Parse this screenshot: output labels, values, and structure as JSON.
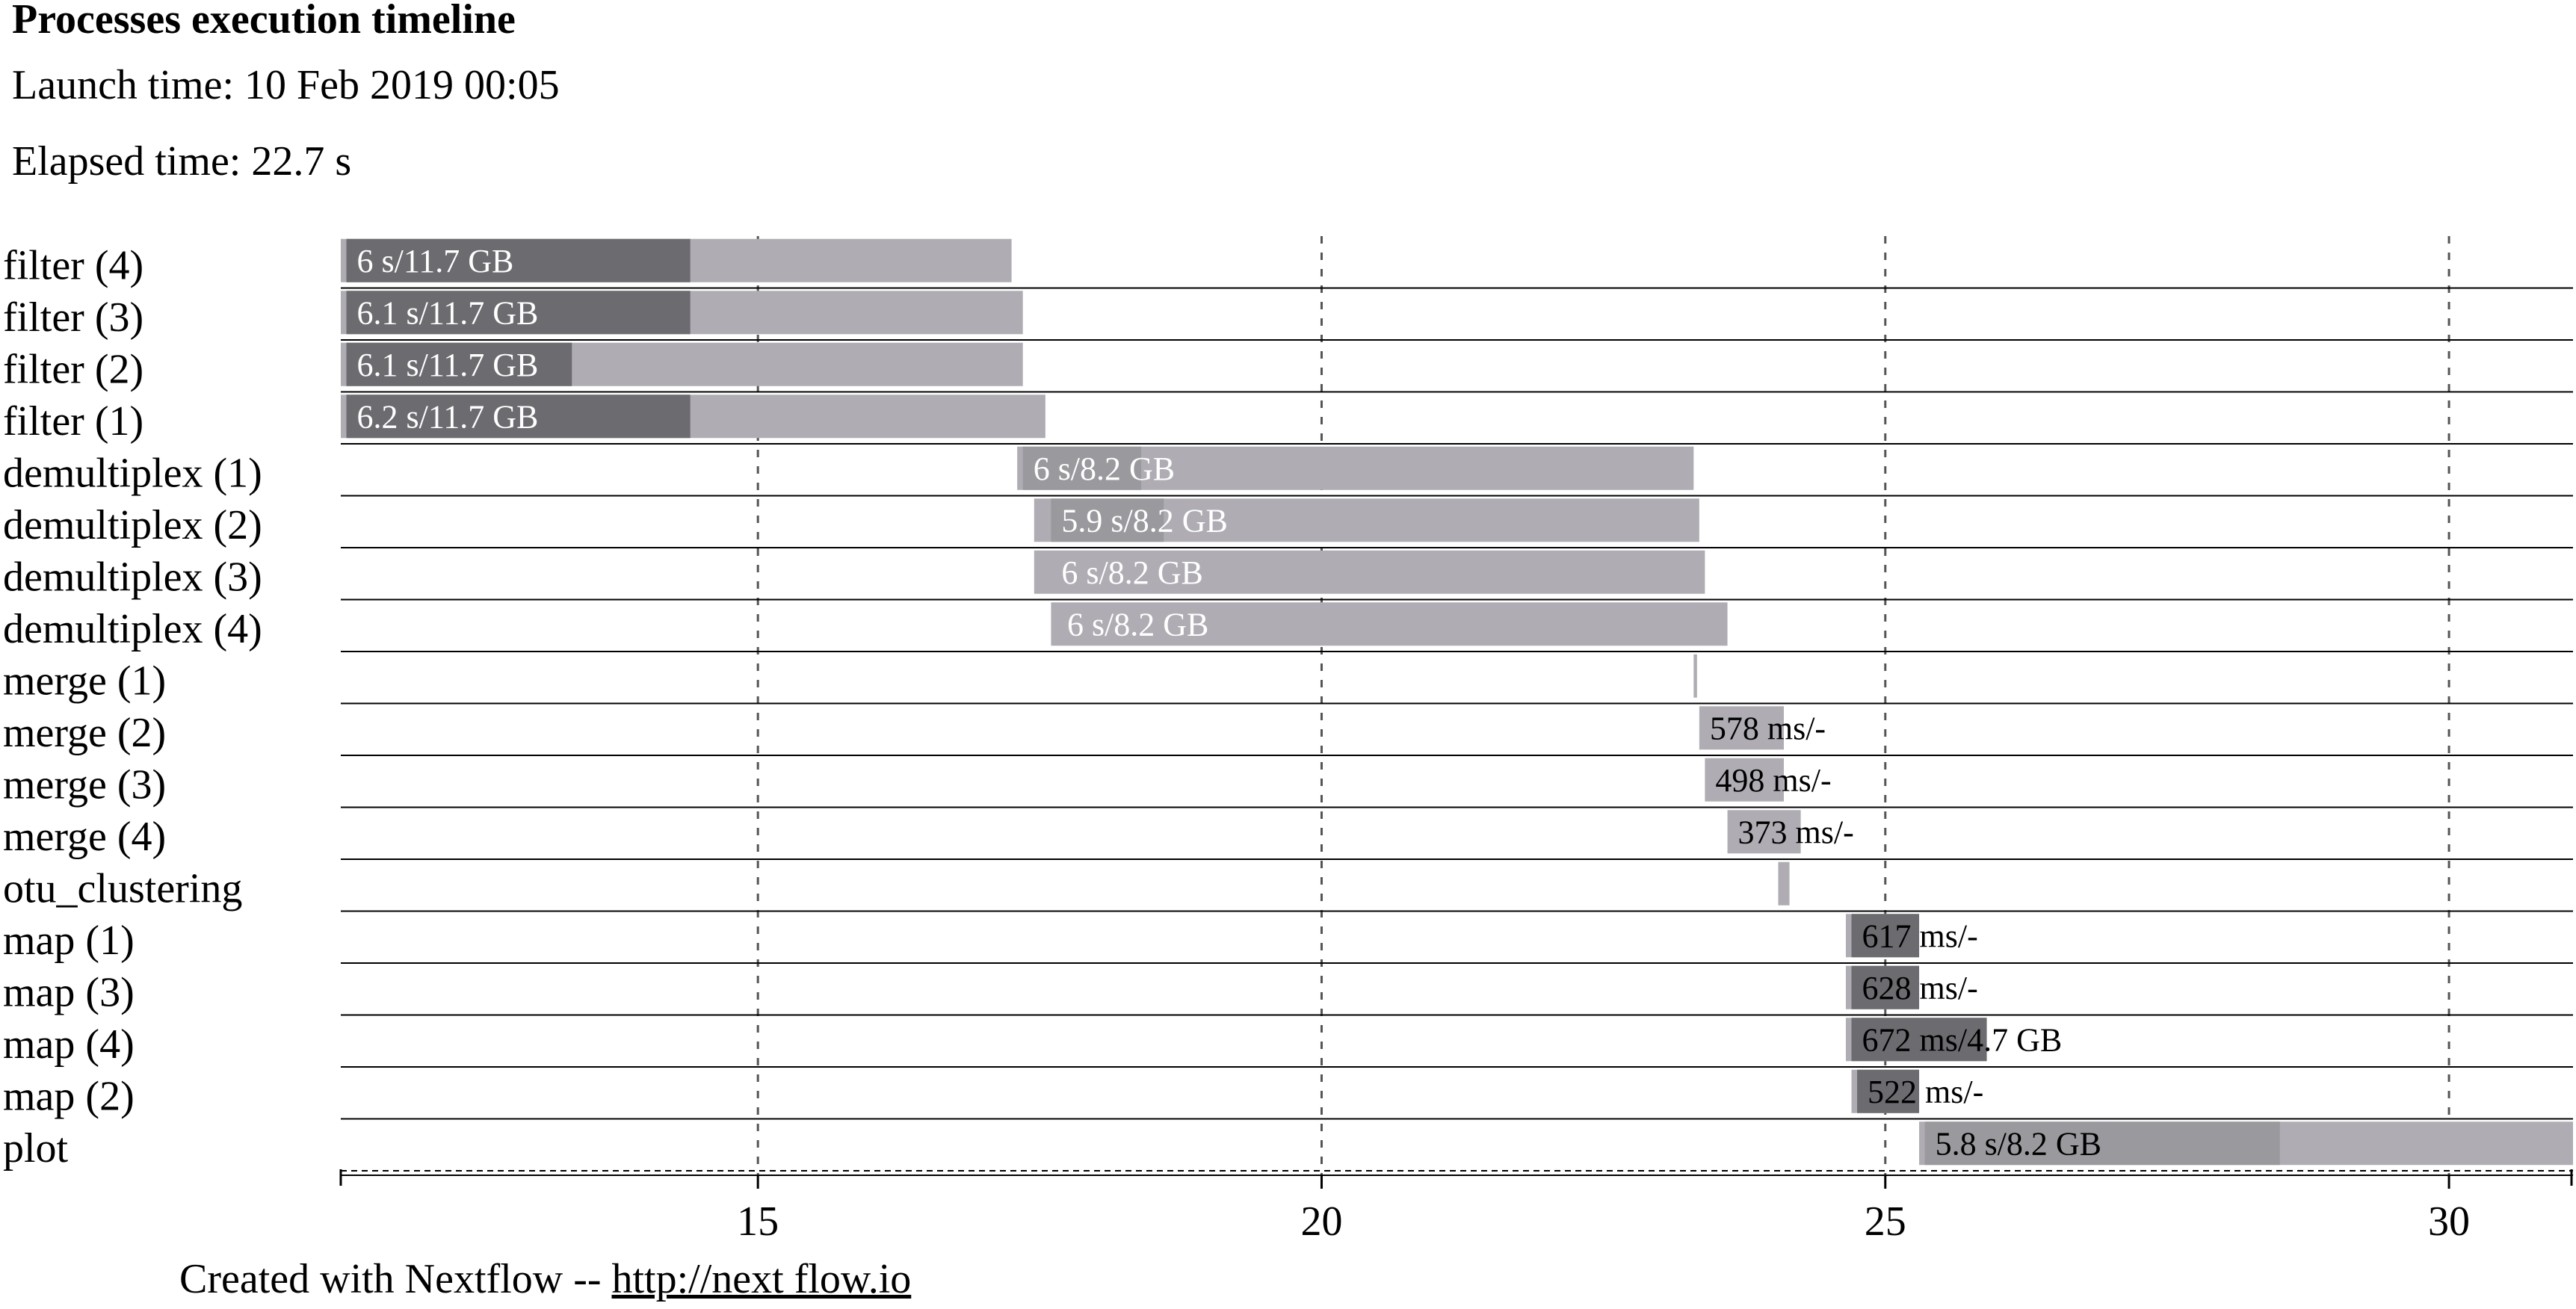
{
  "header": {
    "title": "Processes execution timeline",
    "launch_time": "Launch time: 10 Feb 2019 00:05",
    "elapsed_time": "Elapsed time: 22.7 s"
  },
  "footer": {
    "text": "Created with Nextflow -- ",
    "link_text": "http://next flow.io"
  },
  "colors": {
    "bar_light": "#afadb3",
    "bar_dark": "#6c6b6f",
    "bar_mid": "#9a999d",
    "grid": "#555555",
    "row_line": "#000000",
    "label_light": "#ffffff",
    "label_dark": "#000000"
  },
  "chart_data": {
    "type": "gantt",
    "xlim": [
      11.3,
      31.1
    ],
    "xticks": [
      15,
      20,
      25,
      30
    ],
    "grid": "vertical-dashed",
    "tasks": [
      {
        "name": "filter (4)",
        "submit": 11.3,
        "start": 11.35,
        "end": 17.25,
        "busy_end": 14.4,
        "label": "6 s/11.7 GB",
        "label_color": "light",
        "busy_color": "dark"
      },
      {
        "name": "filter (3)",
        "submit": 11.3,
        "start": 11.35,
        "end": 17.35,
        "busy_end": 14.4,
        "label": "6.1 s/11.7 GB",
        "label_color": "light",
        "busy_color": "dark"
      },
      {
        "name": "filter (2)",
        "submit": 11.3,
        "start": 11.35,
        "end": 17.35,
        "busy_end": 13.35,
        "label": "6.1 s/11.7 GB",
        "label_color": "light",
        "busy_color": "dark"
      },
      {
        "name": "filter (1)",
        "submit": 11.3,
        "start": 11.35,
        "end": 17.55,
        "busy_end": 14.4,
        "label": "6.2 s/11.7 GB",
        "label_color": "light",
        "busy_color": "dark"
      },
      {
        "name": "demultiplex (1)",
        "submit": 17.3,
        "start": 17.35,
        "end": 23.3,
        "busy_end": 18.4,
        "label": "6 s/8.2 GB",
        "label_color": "light",
        "busy_color": "mid"
      },
      {
        "name": "demultiplex (2)",
        "submit": 17.45,
        "start": 17.6,
        "end": 23.35,
        "busy_end": 18.6,
        "label": "5.9 s/8.2 GB",
        "label_color": "light",
        "busy_color": "mid"
      },
      {
        "name": "demultiplex (3)",
        "submit": 17.45,
        "start": 17.6,
        "end": 23.4,
        "busy_end": 17.6,
        "label": "6 s/8.2 GB",
        "label_color": "light",
        "busy_color": "mid"
      },
      {
        "name": "demultiplex (4)",
        "submit": 17.6,
        "start": 17.65,
        "end": 23.6,
        "busy_end": 17.65,
        "label": "6 s/8.2 GB",
        "label_color": "light",
        "busy_color": "mid"
      },
      {
        "name": "merge (1)",
        "submit": 23.3,
        "start": 23.3,
        "end": 23.33,
        "busy_end": 23.3,
        "label": "",
        "label_color": "dark",
        "busy_color": "mid"
      },
      {
        "name": "merge (2)",
        "submit": 23.35,
        "start": 23.35,
        "end": 24.1,
        "busy_end": 23.35,
        "label": "578 ms/-",
        "label_color": "dark",
        "busy_color": "mid"
      },
      {
        "name": "merge (3)",
        "submit": 23.4,
        "start": 23.4,
        "end": 24.1,
        "busy_end": 23.4,
        "label": "498 ms/-",
        "label_color": "dark",
        "busy_color": "mid"
      },
      {
        "name": "merge (4)",
        "submit": 23.6,
        "start": 23.6,
        "end": 24.25,
        "busy_end": 23.6,
        "label": "373 ms/-",
        "label_color": "dark",
        "busy_color": "mid"
      },
      {
        "name": "otu_clustering",
        "submit": 24.05,
        "start": 24.05,
        "end": 24.15,
        "busy_end": 24.05,
        "label": "",
        "label_color": "dark",
        "busy_color": "mid"
      },
      {
        "name": "map (1)",
        "submit": 24.65,
        "start": 24.7,
        "end": 25.3,
        "busy_end": 25.3,
        "label": "617 ms/-",
        "label_color": "dark",
        "busy_color": "dark"
      },
      {
        "name": "map (3)",
        "submit": 24.65,
        "start": 24.7,
        "end": 25.3,
        "busy_end": 25.3,
        "label": "628 ms/-",
        "label_color": "dark",
        "busy_color": "dark"
      },
      {
        "name": "map (4)",
        "submit": 24.65,
        "start": 24.7,
        "end": 25.9,
        "busy_end": 25.9,
        "label": "672 ms/4.7 GB",
        "label_color": "dark",
        "busy_color": "dark"
      },
      {
        "name": "map (2)",
        "submit": 24.7,
        "start": 24.75,
        "end": 25.3,
        "busy_end": 25.3,
        "label": "522 ms/-",
        "label_color": "dark",
        "busy_color": "dark"
      },
      {
        "name": "plot",
        "submit": 25.3,
        "start": 25.35,
        "end": 31.1,
        "busy_end": 28.5,
        "label": "5.8 s/8.2 GB",
        "label_color": "dark",
        "busy_color": "mid"
      }
    ]
  }
}
